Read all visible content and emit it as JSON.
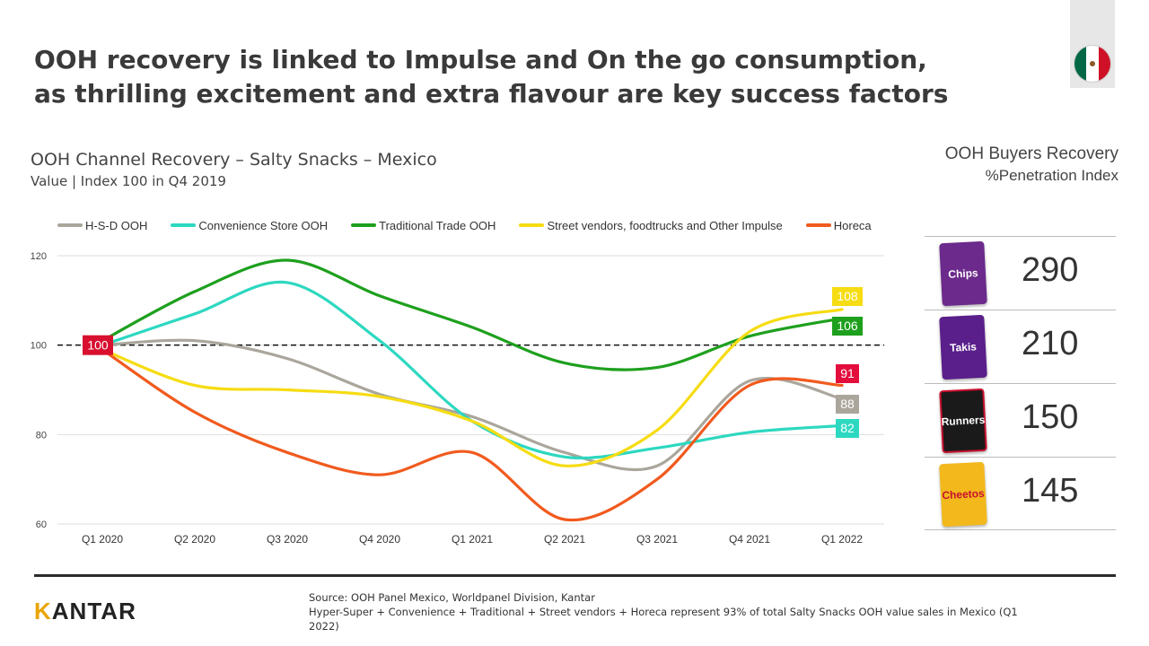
{
  "headline": {
    "line1": "OOH recovery is linked to Impulse and On the go consumption,",
    "line2": "as thrilling excitement and extra flavour are key success factors"
  },
  "flag": {
    "name": "mexico-flag",
    "colors": [
      "#006847",
      "#ffffff",
      "#ce1126"
    ]
  },
  "chart_data": {
    "type": "line",
    "title": "OOH Channel Recovery – Salty Snacks – Mexico",
    "subtitle": "Value | Index 100 in Q4 2019",
    "categories": [
      "Q1 2020",
      "Q2 2020",
      "Q3 2020",
      "Q4 2020",
      "Q1 2021",
      "Q2 2021",
      "Q3 2021",
      "Q4 2021",
      "Q1 2022"
    ],
    "ylim": [
      60,
      120
    ],
    "yticks": [
      60,
      80,
      100,
      120
    ],
    "reference_line": 100,
    "grid": true,
    "legend_position": "top",
    "start_label": "100",
    "series": [
      {
        "name": "H-S-D OOH",
        "color": "#aaa69c",
        "values": [
          100,
          101,
          97,
          89,
          84,
          76,
          73,
          92,
          88
        ],
        "end_label": "88"
      },
      {
        "name": "Convenience Store OOH",
        "color": "#2dd8c0",
        "values": [
          100,
          107,
          114,
          101,
          83,
          75,
          77,
          80.5,
          82
        ],
        "end_label": "82"
      },
      {
        "name": "Traditional Trade OOH",
        "color": "#1ea01e",
        "values": [
          101,
          112,
          119,
          111,
          104,
          96,
          95,
          102,
          106
        ],
        "end_label": "106"
      },
      {
        "name": "Street vendors, foodtrucks and Other Impulse",
        "color": "#f6dc12",
        "values": [
          99,
          91,
          90,
          88.5,
          83,
          73,
          81,
          103,
          108
        ],
        "end_label": "108"
      },
      {
        "name": "Horeca",
        "color": "#f15a1e",
        "values": [
          99,
          85,
          76,
          71,
          76,
          61,
          70,
          91,
          91
        ],
        "end_label": "91"
      }
    ]
  },
  "buyers": {
    "title": "OOH Buyers Recovery",
    "subtitle": "%Penetration Index",
    "products": [
      {
        "name": "Chips",
        "value": "290",
        "color": "#6b2a8c"
      },
      {
        "name": "Takis",
        "value": "210",
        "color": "#5a1f8a"
      },
      {
        "name": "Runners",
        "value": "150",
        "color": "#1a1a1a"
      },
      {
        "name": "Cheetos",
        "value": "145",
        "color": "#f2b81c"
      }
    ]
  },
  "footer": {
    "logo_initial": "K",
    "logo_rest": "ANTAR",
    "source_line1": "Source: OOH Panel Mexico, Worldpanel Division,  Kantar",
    "source_line2": "Hyper-Super + Convenience + Traditional + Street vendors + Horeca represent 93% of total Salty Snacks OOH value sales in Mexico (Q1 2022)"
  }
}
